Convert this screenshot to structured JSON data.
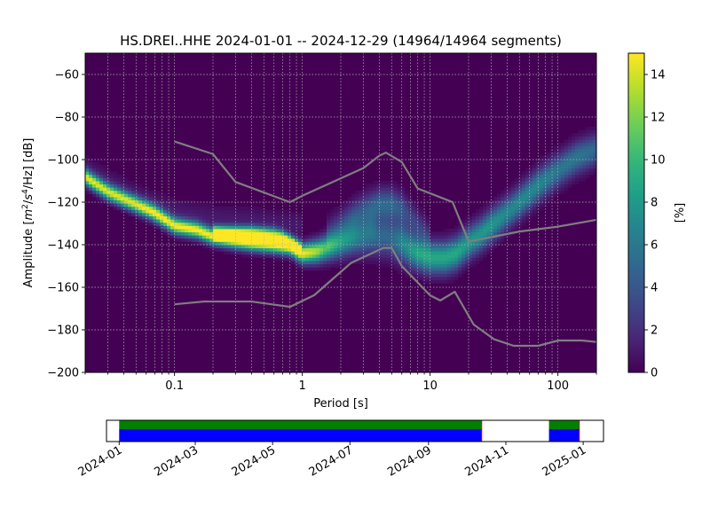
{
  "chart_data": [
    {
      "type": "heatmap",
      "title": "HS.DREI..HHE   2024-01-01 -- 2024-12-29  (14964/14964 segments)",
      "xlabel": "Period [s]",
      "ylabel_parts": {
        "pre": "Amplitude [",
        "m": "m",
        "exp1": "2",
        "slash": "/",
        "s": "s",
        "exp2": "4",
        "hz": "/Hz] [dB]"
      },
      "xscale": "log",
      "xlim": [
        0.02,
        200
      ],
      "ylim": [
        -200,
        -50
      ],
      "x_ticks": [
        {
          "value": 0.1,
          "label": "0.1"
        },
        {
          "value": 1,
          "label": "1"
        },
        {
          "value": 10,
          "label": "10"
        },
        {
          "value": 100,
          "label": "100"
        }
      ],
      "y_ticks": [
        {
          "value": -60,
          "label": "−60"
        },
        {
          "value": -80,
          "label": "−80"
        },
        {
          "value": -100,
          "label": "−100"
        },
        {
          "value": -120,
          "label": "−120"
        },
        {
          "value": -140,
          "label": "−140"
        },
        {
          "value": -160,
          "label": "−160"
        },
        {
          "value": -180,
          "label": "−180"
        },
        {
          "value": -200,
          "label": "−200"
        }
      ],
      "grid": true,
      "colormap": "viridis",
      "colorbar": {
        "label": "[%]",
        "range": [
          0,
          15
        ],
        "ticks": [
          {
            "value": 0,
            "label": "0"
          },
          {
            "value": 2,
            "label": "2"
          },
          {
            "value": 4,
            "label": "4"
          },
          {
            "value": 6,
            "label": "6"
          },
          {
            "value": 8,
            "label": "8"
          },
          {
            "value": 10,
            "label": "10"
          },
          {
            "value": 12,
            "label": "12"
          },
          {
            "value": 14,
            "label": "14"
          }
        ]
      },
      "probability_ridges": [
        {
          "period": [
            0.02,
            0.03,
            0.05,
            0.07,
            0.1,
            0.15,
            0.2,
            0.3,
            0.4,
            0.6,
            0.8,
            1.0,
            1.3,
            1.6,
            2.0,
            2.5,
            3.0,
            3.5,
            4.0,
            4.5,
            5.0,
            5.5,
            6.0,
            7.0,
            8.0,
            10.0,
            13.0,
            16.0,
            20.0,
            25.0,
            30.0,
            40.0,
            50.0,
            70.0,
            100.0,
            140.0,
            200.0
          ],
          "db": [
            -108,
            -115,
            -121,
            -125,
            -131,
            -133,
            -136,
            -138,
            -139,
            -140,
            -141,
            -144,
            -143,
            -141,
            -139,
            -137,
            -136,
            -135,
            -136,
            -136,
            -137,
            -138,
            -139,
            -142,
            -144,
            -146,
            -146,
            -144,
            -139,
            -135,
            -131,
            -125,
            -120,
            -112,
            -105,
            -99,
            -95
          ],
          "peak": [
            14,
            14,
            14,
            15,
            15,
            15,
            15,
            15,
            15,
            15,
            15,
            15,
            13,
            10,
            8,
            7,
            6,
            6,
            5,
            5,
            5,
            6,
            7,
            8,
            9,
            9,
            9,
            9,
            8,
            8,
            8,
            7,
            7,
            7,
            6,
            6,
            5
          ],
          "width": [
            2.5,
            2.5,
            2.5,
            2.5,
            2.5,
            2.5,
            2.5,
            2.5,
            2.5,
            2.5,
            2.5,
            3,
            3.5,
            4,
            4.5,
            5,
            5.5,
            6,
            6,
            6,
            6,
            6,
            6,
            5.5,
            5,
            5,
            5,
            5,
            5,
            5,
            5,
            5,
            5,
            5,
            5,
            5,
            5
          ]
        },
        {
          "period": [
            0.2,
            0.3,
            0.4,
            0.6,
            0.7,
            0.8,
            0.9,
            1.0
          ],
          "db": [
            -134,
            -134,
            -134,
            -135,
            -136,
            -138,
            -140,
            -142
          ],
          "peak": [
            13,
            13,
            13,
            12,
            12,
            11,
            9,
            7
          ],
          "width": [
            2,
            2,
            2,
            2,
            2,
            2,
            2,
            2
          ]
        },
        {
          "period": [
            1.5,
            2.0,
            2.5,
            3.0,
            4.0,
            5.0,
            6.0,
            7.0,
            8.0,
            10.0
          ],
          "db": [
            -136,
            -131,
            -127,
            -124,
            -121,
            -121,
            -123,
            -127,
            -131,
            -137
          ],
          "peak": [
            2,
            3,
            4,
            4,
            5,
            5,
            4,
            3,
            3,
            2
          ],
          "width": [
            5,
            5,
            5,
            5,
            5,
            5,
            5,
            5,
            5,
            5
          ]
        },
        {
          "period": [
            0.02,
            0.05,
            0.1,
            0.2,
            0.4,
            0.8,
            1.0
          ],
          "db": [
            -104,
            -117,
            -124,
            -127,
            -128,
            -130,
            -131
          ],
          "peak": [
            1,
            1,
            1,
            1,
            1,
            1,
            1
          ],
          "width": [
            4,
            4,
            4,
            4,
            4,
            4,
            4
          ]
        }
      ],
      "series": [
        {
          "period": [
            0.1,
            0.2,
            0.3,
            0.8,
            1.0,
            3.0,
            4.0,
            4.5,
            6.0,
            8.0,
            15.0,
            20.0,
            50.0,
            100.0,
            200.0
          ],
          "db": [
            -91.5,
            -97.4,
            -110.5,
            -120.0,
            -117.0,
            -104.0,
            -98.2,
            -96.7,
            -101.1,
            -113.6,
            -120.0,
            -138.5,
            -133.8,
            -131.5,
            -128.3
          ]
        },
        {
          "period": [
            0.1,
            0.17,
            0.4,
            0.8,
            1.24,
            2.4,
            4.3,
            5.0,
            6.0,
            10.0,
            12.0,
            15.6,
            21.9,
            31.6,
            45.0,
            70.0,
            101.0,
            154.0,
            200.0
          ],
          "db": [
            -168.0,
            -166.7,
            -166.7,
            -169.2,
            -163.7,
            -148.6,
            -141.5,
            -141.5,
            -150.0,
            -163.8,
            -166.2,
            -162.1,
            -177.5,
            -184.4,
            -187.5,
            -187.5,
            -185.0,
            -185.0,
            -185.7
          ]
        }
      ]
    },
    {
      "type": "timeline",
      "xlim": [
        "2023-12-22",
        "2025-01-17"
      ],
      "coverage": [
        {
          "start": "2024-01-01",
          "end": "2024-10-13"
        },
        {
          "start": "2024-12-05",
          "end": "2024-12-29"
        }
      ],
      "colors": {
        "data": "#0000ff",
        "psd": "#008000",
        "gap_marker": "#ff0000"
      },
      "date_ticks": [
        {
          "date": "2024-01-01",
          "label": "2024-01"
        },
        {
          "date": "2024-03-01",
          "label": "2024-03"
        },
        {
          "date": "2024-05-01",
          "label": "2024-05"
        },
        {
          "date": "2024-07-01",
          "label": "2024-07"
        },
        {
          "date": "2024-09-01",
          "label": "2024-09"
        },
        {
          "date": "2024-11-01",
          "label": "2024-11"
        },
        {
          "date": "2025-01-01",
          "label": "2025-01"
        }
      ]
    }
  ]
}
